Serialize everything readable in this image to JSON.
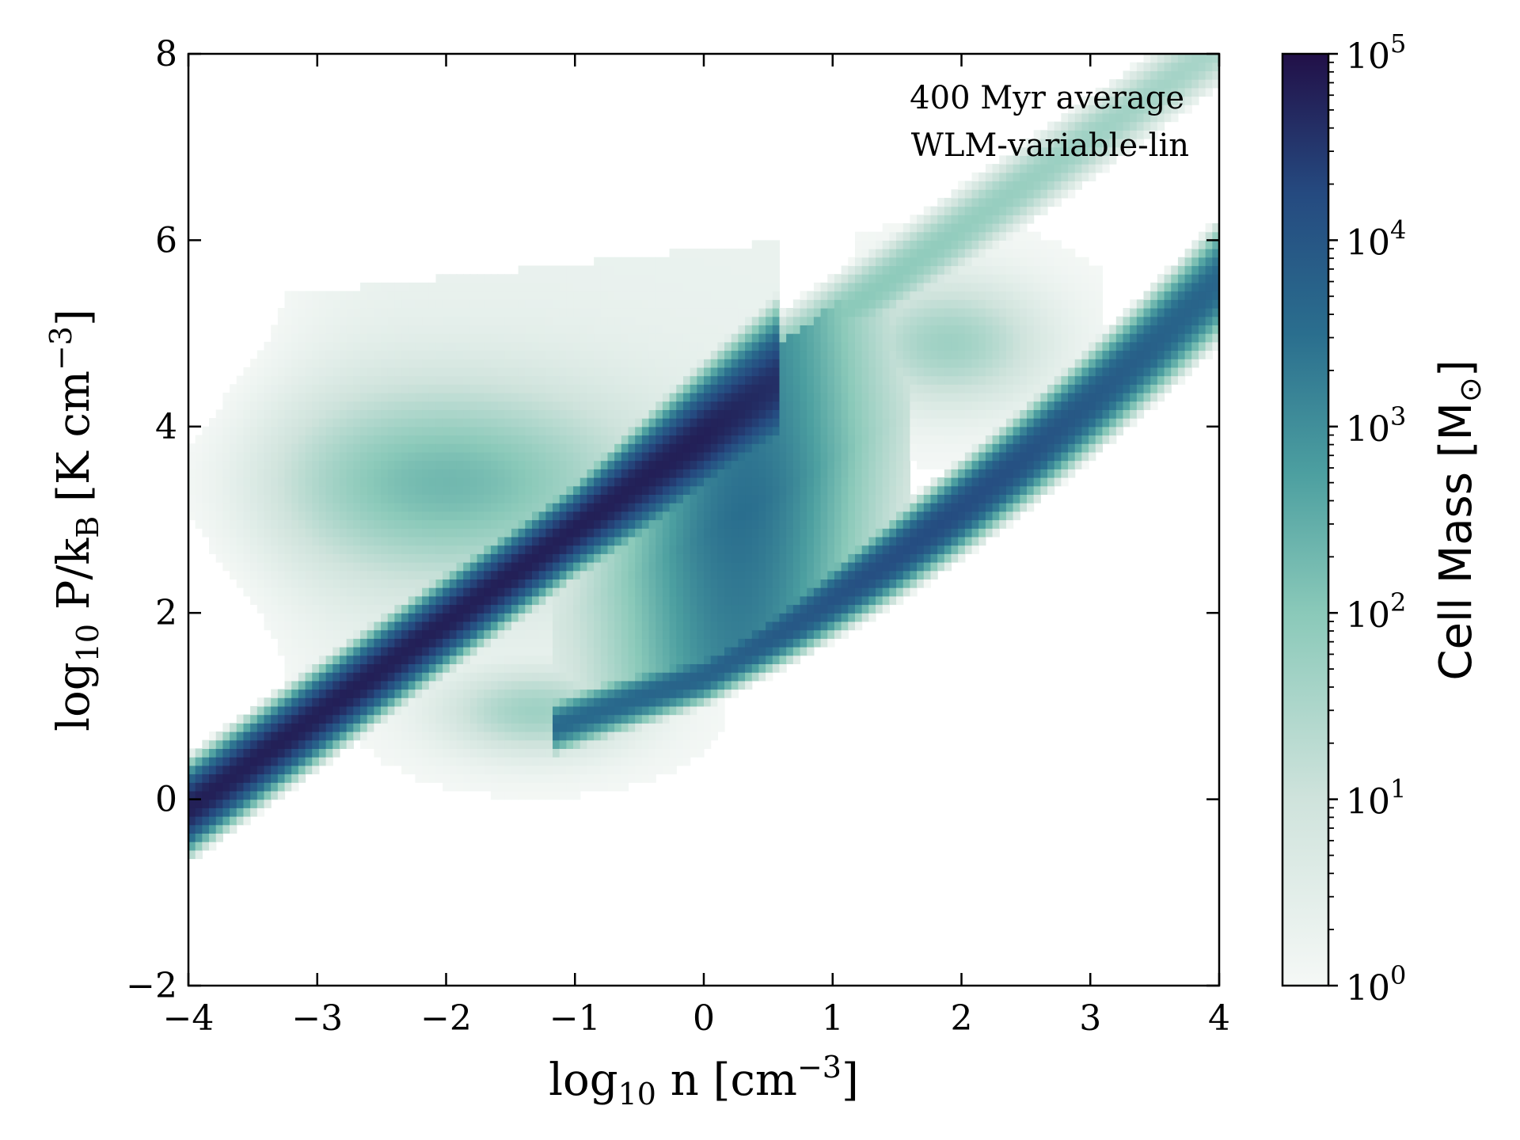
{
  "chart_data": {
    "type": "heatmap",
    "title": "",
    "xlabel": {
      "base": "log",
      "sub": "10",
      "rest": " n [cm",
      "sup": "−3",
      "close": "]"
    },
    "ylabel": {
      "base": "log",
      "sub": "10",
      "rest": " P/k",
      "sub2": "B",
      "rest2": " [K cm",
      "sup": "−3",
      "close": "]"
    },
    "xlim": [
      -4,
      4
    ],
    "ylim": [
      -2,
      8
    ],
    "x_ticks": [
      -4,
      -3,
      -2,
      -1,
      0,
      1,
      2,
      3,
      4
    ],
    "x_tick_labels": [
      "−4",
      "−3",
      "−2",
      "−1",
      "0",
      "1",
      "2",
      "3",
      "4"
    ],
    "y_ticks": [
      -2,
      0,
      2,
      4,
      6,
      8
    ],
    "y_tick_labels": [
      "−2",
      "0",
      "2",
      "4",
      "6",
      "8"
    ],
    "annotations": [
      "400 Myr average",
      "WLM-variable-lin"
    ],
    "colorbar": {
      "label": "Cell Mass [M",
      "label_sub": "⊙",
      "label_close": "]",
      "scale": "log",
      "range": [
        1,
        100000
      ],
      "ticks": [
        {
          "value": 1,
          "base": "10",
          "exp": "0"
        },
        {
          "value": 10,
          "base": "10",
          "exp": "1"
        },
        {
          "value": 100,
          "base": "10",
          "exp": "2"
        },
        {
          "value": 1000,
          "base": "10",
          "exp": "3"
        },
        {
          "value": 10000,
          "base": "10",
          "exp": "4"
        },
        {
          "value": 100000,
          "base": "10",
          "exp": "5"
        }
      ],
      "colors": [
        "#f5f8f6",
        "#cfe3dc",
        "#8ac9b9",
        "#4c9fa0",
        "#2a6e8e",
        "#254a80",
        "#221048"
      ]
    },
    "components": [
      {
        "name": "main-diagonal-band",
        "x": [
          -4,
          0.3
        ],
        "y_center": [
          -0.1,
          4.2
        ],
        "log_mass_peak": 4.8
      },
      {
        "name": "thermal-equilibrium-branch",
        "x": [
          -1,
          4
        ],
        "log_mass_peak": 4.0
      },
      {
        "name": "high-density-ridge",
        "x": [
          0.5,
          4
        ],
        "y_center": [
          4.6,
          8.0
        ],
        "log_mass_peak": 2.0
      },
      {
        "name": "hot-diffuse-cloud",
        "x": [
          -4,
          0.5
        ],
        "y": [
          1.5,
          5.8
        ],
        "log_mass_peak": 2.0
      },
      {
        "name": "low-pressure-tail",
        "x": [
          -2.5,
          -0.3
        ],
        "y": [
          0.5,
          1.5
        ],
        "log_mass_peak": 1.7
      }
    ]
  }
}
